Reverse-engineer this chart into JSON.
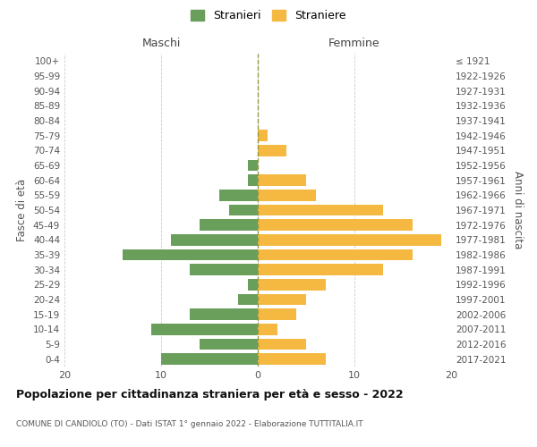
{
  "age_groups": [
    "0-4",
    "5-9",
    "10-14",
    "15-19",
    "20-24",
    "25-29",
    "30-34",
    "35-39",
    "40-44",
    "45-49",
    "50-54",
    "55-59",
    "60-64",
    "65-69",
    "70-74",
    "75-79",
    "80-84",
    "85-89",
    "90-94",
    "95-99",
    "100+"
  ],
  "birth_years": [
    "2017-2021",
    "2012-2016",
    "2007-2011",
    "2002-2006",
    "1997-2001",
    "1992-1996",
    "1987-1991",
    "1982-1986",
    "1977-1981",
    "1972-1976",
    "1967-1971",
    "1962-1966",
    "1957-1961",
    "1952-1956",
    "1947-1951",
    "1942-1946",
    "1937-1941",
    "1932-1936",
    "1927-1931",
    "1922-1926",
    "≤ 1921"
  ],
  "maschi": [
    10,
    6,
    11,
    7,
    2,
    1,
    7,
    14,
    9,
    6,
    3,
    4,
    1,
    1,
    0,
    0,
    0,
    0,
    0,
    0,
    0
  ],
  "femmine": [
    7,
    5,
    2,
    4,
    5,
    7,
    13,
    16,
    19,
    16,
    13,
    6,
    5,
    0,
    3,
    1,
    0,
    0,
    0,
    0,
    0
  ],
  "maschi_color": "#6a9e5b",
  "femmine_color": "#f5b942",
  "grid_color": "#cccccc",
  "zero_line_color": "#999944",
  "title": "Popolazione per cittadinanza straniera per età e sesso - 2022",
  "subtitle": "COMUNE DI CANDIOLO (TO) - Dati ISTAT 1° gennaio 2022 - Elaborazione TUTTITALIA.IT",
  "ylabel_left": "Fasce di età",
  "ylabel_right": "Anni di nascita",
  "xlabel_left": "Maschi",
  "xlabel_right": "Femmine",
  "xlim": 20,
  "legend_stranieri": "Stranieri",
  "legend_straniere": "Straniere",
  "xticks": [
    -20,
    -10,
    0,
    10,
    20
  ]
}
